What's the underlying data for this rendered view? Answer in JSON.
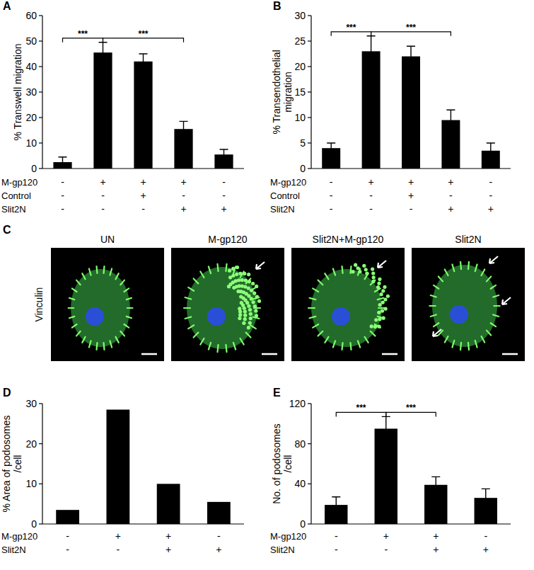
{
  "chart_data": [
    {
      "type": "bar",
      "title": "A",
      "y_label": "% Transwell migration",
      "categories": [
        null,
        null,
        null,
        null,
        null
      ],
      "values": [
        2.5,
        45.5,
        42,
        15.5,
        5.5
      ],
      "errors": [
        2,
        4,
        3,
        3,
        2
      ],
      "color": "#000000",
      "ylim": [
        0,
        60
      ],
      "yticks": [
        0,
        10,
        20,
        30,
        40,
        50,
        60
      ],
      "conditions": [
        {
          "name": "M-gp120",
          "values": [
            "-",
            "+",
            "+",
            "+",
            "-"
          ]
        },
        {
          "name": "Control",
          "values": [
            "-",
            "-",
            "+",
            "-",
            "-"
          ]
        },
        {
          "name": "Slit2N",
          "values": [
            "-",
            "-",
            "-",
            "+",
            "+"
          ]
        }
      ],
      "annotations": [
        {
          "text": "***",
          "between": [
            0,
            1
          ]
        },
        {
          "text": "***",
          "between": [
            1,
            3
          ]
        }
      ]
    },
    {
      "type": "bar",
      "title": "B",
      "y_label": "% Transendothelial migration",
      "categories": [
        null,
        null,
        null,
        null,
        null
      ],
      "values": [
        4,
        23,
        22,
        9.5,
        3.5
      ],
      "errors": [
        1,
        3,
        2,
        2,
        1.5
      ],
      "color": "#000000",
      "ylim": [
        0,
        30
      ],
      "yticks": [
        0,
        5,
        10,
        15,
        20,
        25,
        30
      ],
      "conditions": [
        {
          "name": "M-gp120",
          "values": [
            "-",
            "+",
            "+",
            "+",
            "-"
          ]
        },
        {
          "name": "Control",
          "values": [
            "-",
            "-",
            "+",
            "-",
            "-"
          ]
        },
        {
          "name": "Slit2N",
          "values": [
            "-",
            "-",
            "-",
            "+",
            "+"
          ]
        }
      ],
      "annotations": [
        {
          "text": "***",
          "between": [
            0,
            1
          ]
        },
        {
          "text": "***",
          "between": [
            1,
            3
          ]
        }
      ]
    },
    {
      "type": "bar",
      "title": "D",
      "y_label": "% Area of podosomes /cell",
      "categories": [
        null,
        null,
        null,
        null
      ],
      "values": [
        3.5,
        28.5,
        10,
        5.5
      ],
      "color": "#000000",
      "ylim": [
        0,
        30
      ],
      "yticks": [
        0,
        10,
        20,
        30
      ],
      "conditions": [
        {
          "name": "M-gp120",
          "values": [
            "-",
            "+",
            "+",
            "-"
          ]
        },
        {
          "name": "Slit2N",
          "values": [
            "-",
            "-",
            "+",
            "+"
          ]
        }
      ]
    },
    {
      "type": "bar",
      "title": "E",
      "y_label": "No. of podosomes /cell",
      "categories": [
        null,
        null,
        null,
        null
      ],
      "values": [
        19,
        95,
        39,
        26
      ],
      "errors": [
        8,
        12,
        8,
        9
      ],
      "color": "#000000",
      "ylim": [
        0,
        120
      ],
      "yticks": [
        0,
        40,
        80,
        120
      ],
      "conditions": [
        {
          "name": "M-gp120",
          "values": [
            "-",
            "+",
            "+",
            "-"
          ]
        },
        {
          "name": "Slit2N",
          "values": [
            "-",
            "-",
            "+",
            "+"
          ]
        }
      ],
      "annotations": [
        {
          "text": "***",
          "between": [
            0,
            1
          ]
        },
        {
          "text": "***",
          "between": [
            1,
            2
          ]
        }
      ]
    }
  ],
  "image_panel": {
    "title": "C",
    "row_label": "Vinculin",
    "images": [
      {
        "title": "UN"
      },
      {
        "title": "M-gp120"
      },
      {
        "title": "Slit2N+M-gp120"
      },
      {
        "title": "Slit2N"
      }
    ]
  }
}
